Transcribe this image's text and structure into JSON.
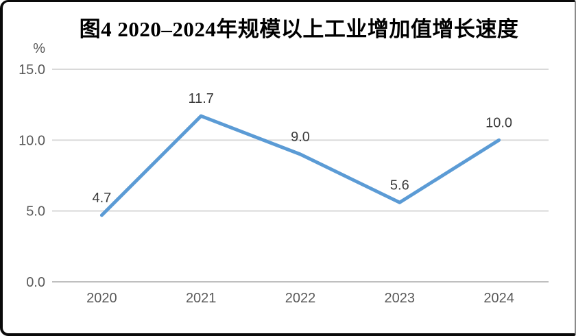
{
  "chart_data": {
    "type": "line",
    "title": "图4 2020–2024年规模以上工业增加值增长速度",
    "unit_label": "%",
    "categories": [
      "2020",
      "2021",
      "2022",
      "2023",
      "2024"
    ],
    "values": [
      4.7,
      11.7,
      9.0,
      5.6,
      10.0
    ],
    "data_labels": [
      "4.7",
      "11.7",
      "9.0",
      "5.6",
      "10.0"
    ],
    "y_ticks": [
      "0.0",
      "5.0",
      "10.0",
      "15.0"
    ],
    "ylim": [
      0,
      15
    ],
    "xlabel": "",
    "ylabel": "%",
    "grid": true,
    "legend": "none",
    "colors": {
      "line": "#5B9BD5",
      "gridline": "#D9D9D9",
      "axis_line": "#BFBFBF",
      "tick_label": "#595959",
      "data_label": "#3A3A3A",
      "title": "#000000"
    }
  }
}
